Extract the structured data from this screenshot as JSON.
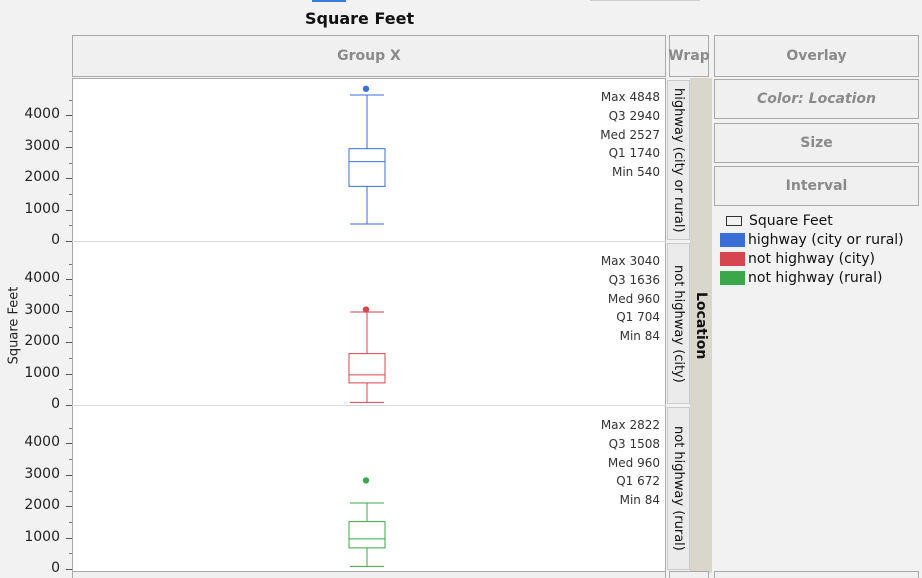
{
  "title": "Square Feet",
  "zones": {
    "group_x": "Group X",
    "wrap": "Wrap",
    "overlay": "Overlay",
    "color": "Color: Location",
    "size": "Size",
    "interval": "Interval"
  },
  "wrap_variable": "Location",
  "legend": {
    "title": "Square Feet",
    "items": [
      {
        "label": "highway (city or rural)",
        "color": "#3b6fd6"
      },
      {
        "label": "not highway (city)",
        "color": "#d64550"
      },
      {
        "label": "not highway (rural)",
        "color": "#3aa84a"
      }
    ]
  },
  "chart_data": {
    "type": "boxplot",
    "ylabel": "Square Feet",
    "ylim": [
      0,
      5200
    ],
    "yticks": [
      0,
      1000,
      2000,
      3000,
      4000
    ],
    "panels": [
      {
        "label": "highway (city or rural)",
        "color": "#3b6fd6",
        "stats": {
          "Max": 4848,
          "Q3": 2940,
          "Med": 2527,
          "Q1": 1740,
          "Min": 540
        },
        "whisker_low": 540,
        "whisker_high": 4650,
        "outliers": [
          4848
        ]
      },
      {
        "label": "not highway (city)",
        "color": "#d64550",
        "stats": {
          "Max": 3040,
          "Q3": 1636,
          "Med": 960,
          "Q1": 704,
          "Min": 84
        },
        "whisker_low": 84,
        "whisker_high": 2960,
        "outliers": [
          3040
        ]
      },
      {
        "label": "not highway (rural)",
        "color": "#3aa84a",
        "stats": {
          "Max": 2822,
          "Q3": 1508,
          "Med": 960,
          "Q1": 672,
          "Min": 84
        },
        "whisker_low": 84,
        "whisker_high": 2100,
        "outliers": [
          2822
        ]
      }
    ]
  }
}
